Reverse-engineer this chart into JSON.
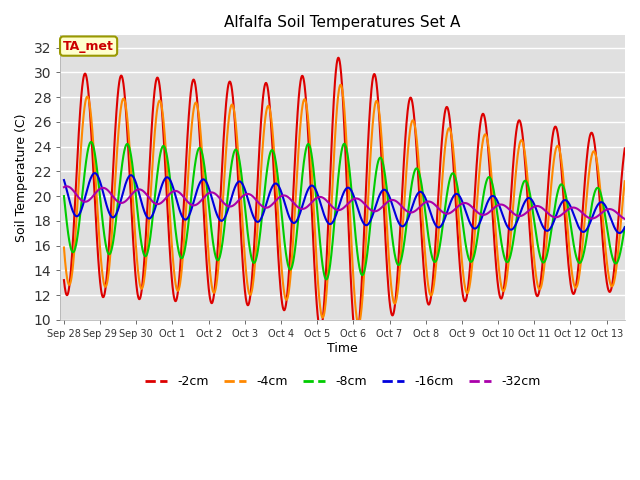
{
  "title": "Alfalfa Soil Temperatures Set A",
  "xlabel": "Time",
  "ylabel": "Soil Temperature (C)",
  "ylim": [
    10,
    33
  ],
  "yticks": [
    10,
    12,
    14,
    16,
    18,
    20,
    22,
    24,
    26,
    28,
    30,
    32
  ],
  "background_color": "#e0e0e0",
  "legend_label": "TA_met",
  "legend_box_color": "#ffffcc",
  "legend_box_edge": "#999900",
  "series_colors": {
    "-2cm": "#dd0000",
    "-4cm": "#ff8800",
    "-8cm": "#00cc00",
    "-16cm": "#0000dd",
    "-32cm": "#aa00aa"
  },
  "x_tick_labels": [
    "Sep 28",
    "Sep 29",
    "Sep 30",
    "Oct 1",
    "Oct 2",
    "Oct 3",
    "Oct 4",
    "Oct 5",
    "Oct 6",
    "Oct 7",
    "Oct 8",
    "Oct 9",
    "Oct 10",
    "Oct 11",
    "Oct 12",
    "Oct 13"
  ]
}
